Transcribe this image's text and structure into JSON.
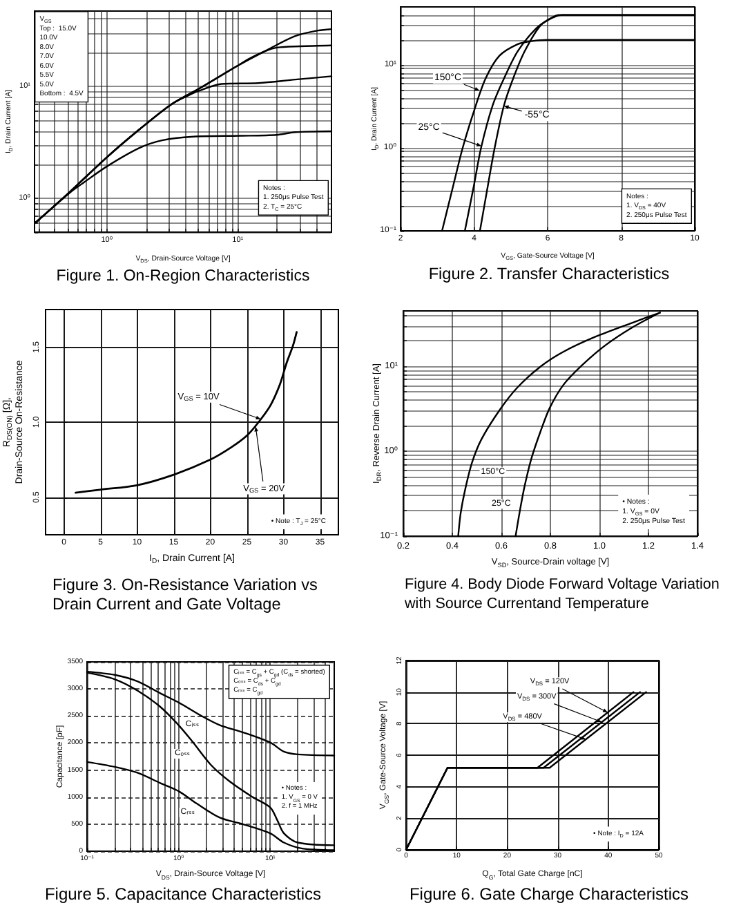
{
  "chart_data": [
    {
      "type": "line",
      "title": "Figure 1. On-Region Characteristics",
      "xlabel": "V$_{DS}$, Drain-Source Voltage [V]",
      "ylabel": "I$_{D}$, Drain Current [A]",
      "log": "xy",
      "xlim": [
        0.28,
        52
      ],
      "ylim": [
        0.5,
        47
      ],
      "xticks": [
        {
          "value": 0.3,
          "label": null
        },
        {
          "value": 0.4,
          "label": null
        },
        {
          "value": 0.5,
          "label": null
        },
        {
          "value": 0.6,
          "label": null
        },
        {
          "value": 0.7,
          "label": null
        },
        {
          "value": 0.8,
          "label": null
        },
        {
          "value": 0.9,
          "label": null
        },
        {
          "value": 1,
          "label": "10⁰"
        },
        {
          "value": 2,
          "label": null
        },
        {
          "value": 3,
          "label": null
        },
        {
          "value": 4,
          "label": null
        },
        {
          "value": 5,
          "label": null
        },
        {
          "value": 6,
          "label": null
        },
        {
          "value": 7,
          "label": null
        },
        {
          "value": 8,
          "label": null
        },
        {
          "value": 9,
          "label": null
        },
        {
          "value": 10,
          "label": "10¹"
        },
        {
          "value": 20,
          "label": null
        },
        {
          "value": 30,
          "label": null
        },
        {
          "value": 40,
          "label": null
        }
      ],
      "yticks": [
        {
          "value": 0.5,
          "label": null
        },
        {
          "value": 0.6,
          "label": null
        },
        {
          "value": 0.7,
          "label": null
        },
        {
          "value": 0.8,
          "label": null
        },
        {
          "value": 0.9,
          "label": null
        },
        {
          "value": 1,
          "label": "10⁰"
        },
        {
          "value": 2,
          "label": null
        },
        {
          "value": 3,
          "label": null
        },
        {
          "value": 4,
          "label": null
        },
        {
          "value": 5,
          "label": null
        },
        {
          "value": 6,
          "label": null
        },
        {
          "value": 7,
          "label": null
        },
        {
          "value": 8,
          "label": null
        },
        {
          "value": 9,
          "label": null
        },
        {
          "value": 10,
          "label": "10¹"
        },
        {
          "value": 20,
          "label": null
        },
        {
          "value": 30,
          "label": null
        },
        {
          "value": 40,
          "label": null
        }
      ],
      "grid": true,
      "marker": "none",
      "series": [
        {
          "color": "#000000",
          "x": [
            0.286,
            0.524,
            1.0,
            1.76,
            3.1,
            5.03,
            10,
            16.9,
            27.5,
            41.1,
            52
          ],
          "values": [
            0.61,
            1.15,
            2.33,
            4.1,
            6.9,
            9.5,
            15.3,
            21.2,
            28.1,
            31.5,
            32.4
          ]
        },
        {
          "color": "#000000",
          "x": [
            0.286,
            0.524,
            1.0,
            1.76,
            3.1,
            5.03,
            10,
            12.2,
            16,
            19.9,
            30,
            52
          ],
          "values": [
            0.61,
            1.15,
            2.33,
            4.1,
            6.9,
            9.5,
            15.3,
            17.6,
            20.5,
            22.2,
            22.8,
            23.2
          ]
        },
        {
          "color": "#000000",
          "x": [
            0.286,
            0.524,
            1.0,
            1.76,
            3.1,
            4.2,
            5.03,
            7.5,
            14.4,
            27.5,
            52
          ],
          "values": [
            0.61,
            1.15,
            2.33,
            4.1,
            6.9,
            8.3,
            9.1,
            10.5,
            10.7,
            11.5,
            12.3
          ]
        },
        {
          "color": "#000000",
          "x": [
            0.286,
            0.524,
            0.668,
            1.0,
            1.76,
            2.64,
            4.6,
            10.4,
            19.8,
            27.5,
            52
          ],
          "values": [
            0.61,
            1.13,
            1.39,
            1.93,
            2.81,
            3.3,
            3.56,
            3.62,
            3.69,
            3.9,
            3.98
          ]
        }
      ],
      "annotations": [
        "V$_{GS}$\nTop :  15.0V\n10.0V\n8.0V\n7.0V\n6.0V\n5.5V\n5.0V\nBottom :  4.5V",
        "Notes :\n1. 250μs Pulse Test\n2. T$_{C}$ = 25°C"
      ]
    },
    {
      "type": "line",
      "title": "Figure 2. Transfer Characteristics",
      "xlabel": "V$_{GS}$, Gate-Source Voltage [V]",
      "ylabel": "I$_{D}$, Drain Current [A]",
      "log": "y",
      "xlim": [
        2,
        10
      ],
      "ylim": [
        0.1,
        50
      ],
      "xticks": [
        2,
        4,
        6,
        8,
        10
      ],
      "yticks": [
        {
          "value": 0.1,
          "label": "10⁻¹"
        },
        {
          "value": 0.2,
          "label": null
        },
        {
          "value": 0.3,
          "label": null
        },
        {
          "value": 0.4,
          "label": null
        },
        {
          "value": 0.5,
          "label": null
        },
        {
          "value": 0.6,
          "label": null
        },
        {
          "value": 0.7,
          "label": null
        },
        {
          "value": 0.8,
          "label": null
        },
        {
          "value": 0.9,
          "label": null
        },
        {
          "value": 1,
          "label": "10⁰"
        },
        {
          "value": 2,
          "label": null
        },
        {
          "value": 3,
          "label": null
        },
        {
          "value": 4,
          "label": null
        },
        {
          "value": 5,
          "label": null
        },
        {
          "value": 6,
          "label": null
        },
        {
          "value": 7,
          "label": null
        },
        {
          "value": 8,
          "label": null
        },
        {
          "value": 9,
          "label": null
        },
        {
          "value": 10,
          "label": "10¹"
        },
        {
          "value": 20,
          "label": null
        },
        {
          "value": 30,
          "label": null
        },
        {
          "value": 40,
          "label": null
        }
      ],
      "grid": true,
      "marker": "none",
      "series": [
        {
          "color": "#000000",
          "x": [
            3.13,
            3.44,
            3.69,
            4.0,
            4.31,
            4.69,
            5.19,
            5.56,
            6.0,
            10
          ],
          "values": [
            0.1,
            0.36,
            1.0,
            2.8,
            6.8,
            12.9,
            17.8,
            19.3,
            20,
            20
          ]
        },
        {
          "color": "#000000",
          "x": [
            3.75,
            4.0,
            4.19,
            4.5,
            4.81,
            5.19,
            5.69,
            6.06,
            6.31,
            10
          ],
          "values": [
            0.1,
            0.36,
            1.0,
            3.2,
            6.8,
            14.7,
            27.5,
            36,
            40,
            40
          ]
        },
        {
          "color": "#000000",
          "x": [
            4.16,
            4.38,
            4.56,
            4.81,
            5.06,
            5.38,
            5.81,
            6.19,
            6.4,
            10
          ],
          "values": [
            0.1,
            0.36,
            1.0,
            3.2,
            6.8,
            14.7,
            30,
            38,
            40,
            40
          ]
        }
      ],
      "annotations": [
        {
          "text": "150°C",
          "x": 4.15,
          "y": 4.9
        },
        {
          "text": "25°C",
          "x": 4.2,
          "y": 1.05
        },
        {
          "text": "-55°C",
          "x": 4.81,
          "y": 3.2
        },
        "Notes :\n1. V$_{DS}$ = 40V\n2. 250μs Pulse Test"
      ]
    },
    {
      "type": "line",
      "title": "Figure 3. On-Resistance Variation vs Drain Current and Gate Voltage",
      "xlabel": "I$_{D}$, Drain Current [A]",
      "ylabel": "R$_{DS(ON)}$ [Ω],\nDrain-Source On-Resistance",
      "xlim": [
        -2.5,
        37.5
      ],
      "ylim": [
        0.25,
        1.75
      ],
      "xticks": [
        0,
        5,
        10,
        15,
        20,
        25,
        30,
        35
      ],
      "yticks": [
        0.5,
        {
          "value": 1,
          "label": "1.0"
        },
        1.5
      ],
      "grid": true,
      "marker": "none",
      "series": [
        {
          "color": "#000000",
          "x": [
            1.6,
            4.9,
            10,
            15,
            20,
            22.8,
            25,
            26.6,
            28.2,
            29.5,
            30.4,
            31.3,
            31.8
          ],
          "values": [
            0.53,
            0.55,
            0.58,
            0.65,
            0.75,
            0.83,
            0.91,
            1.0,
            1.11,
            1.25,
            1.39,
            1.51,
            1.6
          ]
        }
      ],
      "annotations": [
        {
          "text": "V$_{GS}$ = 10V",
          "x": 26.9,
          "y": 1.02
        },
        {
          "text": "V$_{GS}$ = 20V",
          "x": 26.2,
          "y": 0.97
        },
        "• Note : T$_{J}$ = 25°C"
      ]
    },
    {
      "type": "line",
      "title": "Figure 4. Body Diode Forward Voltage Variation with Source Currentand Temperature",
      "xlabel": "V$_{SD}$, Source-Drain voltage [V]",
      "ylabel": "I$_{DR}$, Reverse Drain Current [A]",
      "log": "y",
      "xlim": [
        0.2,
        1.4
      ],
      "ylim": [
        0.1,
        45
      ],
      "xticks": [
        0.2,
        0.4,
        0.6,
        0.8,
        {
          "value": 1,
          "label": "1.0"
        },
        1.2,
        1.4
      ],
      "yticks": [
        {
          "value": 0.1,
          "label": "10⁻¹"
        },
        {
          "value": 0.2,
          "label": null
        },
        {
          "value": 0.3,
          "label": null
        },
        {
          "value": 0.4,
          "label": null
        },
        {
          "value": 0.5,
          "label": null
        },
        {
          "value": 0.6,
          "label": null
        },
        {
          "value": 0.7,
          "label": null
        },
        {
          "value": 0.8,
          "label": null
        },
        {
          "value": 0.9,
          "label": null
        },
        {
          "value": 1,
          "label": "10⁰"
        },
        {
          "value": 2,
          "label": null
        },
        {
          "value": 3,
          "label": null
        },
        {
          "value": 4,
          "label": null
        },
        {
          "value": 5,
          "label": null
        },
        {
          "value": 6,
          "label": null
        },
        {
          "value": 7,
          "label": null
        },
        {
          "value": 8,
          "label": null
        },
        {
          "value": 9,
          "label": null
        },
        {
          "value": 10,
          "label": "10¹"
        },
        {
          "value": 20,
          "label": null
        },
        {
          "value": 30,
          "label": null
        },
        {
          "value": 40,
          "label": null
        }
      ],
      "grid": true,
      "marker": "none",
      "series": [
        {
          "color": "#000000",
          "x": [
            0.424,
            0.434,
            0.452,
            0.48,
            0.518,
            0.593,
            0.667,
            0.761,
            0.854,
            0.985,
            1.135,
            1.247
          ],
          "values": [
            0.1,
            0.186,
            0.35,
            0.73,
            1.37,
            3.06,
            5.7,
            10,
            14.9,
            22.4,
            32.7,
            42.9
          ]
        },
        {
          "color": "#000000",
          "x": [
            0.658,
            0.677,
            0.695,
            0.723,
            0.761,
            0.798,
            0.854,
            0.929,
            1.022,
            1.135,
            1.247
          ],
          "values": [
            0.1,
            0.21,
            0.39,
            0.83,
            1.75,
            3.27,
            6.1,
            10.3,
            17.5,
            28.8,
            42.9
          ]
        }
      ],
      "annotations": [
        {
          "text": "150°C",
          "x": 0.47,
          "y": 0.57
        },
        {
          "text": "25°C",
          "x": 0.673,
          "y": 0.24
        },
        "• Notes :\n1. V$_{GS}$ = 0V\n2. 250μs Pulse Test"
      ]
    },
    {
      "type": "line",
      "title": "Figure 5. Capacitance Characteristics",
      "xlabel": "V$_{DS}$, Drain-Source Voltage [V]",
      "ylabel": "Capacitance [pF]",
      "log": "x",
      "xlim": [
        0.1,
        50
      ],
      "ylim": [
        0,
        3500
      ],
      "xticks": [
        {
          "value": 0.1,
          "label": "10⁻¹"
        },
        {
          "value": 0.2,
          "label": null
        },
        {
          "value": 0.3,
          "label": null
        },
        {
          "value": 0.4,
          "label": null
        },
        {
          "value": 0.5,
          "label": null
        },
        {
          "value": 0.6,
          "label": null
        },
        {
          "value": 0.7,
          "label": null
        },
        {
          "value": 0.8,
          "label": null
        },
        {
          "value": 0.9,
          "label": null
        },
        {
          "value": 1,
          "label": "10⁰"
        },
        {
          "value": 2,
          "label": null
        },
        {
          "value": 3,
          "label": null
        },
        {
          "value": 4,
          "label": null
        },
        {
          "value": 5,
          "label": null
        },
        {
          "value": 6,
          "label": null
        },
        {
          "value": 7,
          "label": null
        },
        {
          "value": 8,
          "label": null
        },
        {
          "value": 9,
          "label": null
        },
        {
          "value": 10,
          "label": "10¹"
        },
        {
          "value": 20,
          "label": null
        },
        {
          "value": 30,
          "label": null
        },
        {
          "value": 40,
          "label": null
        }
      ],
      "yticks": [
        0,
        500,
        1000,
        1500,
        2000,
        2500,
        3000,
        3500
      ],
      "grid": true,
      "marker": "none",
      "series": [
        {
          "color": "#000000",
          "x": [
            0.1,
            0.2,
            0.355,
            0.63,
            1,
            1.78,
            2.82,
            5,
            10,
            14.1,
            20,
            50
          ],
          "values": [
            3320,
            3260,
            3140,
            2920,
            2750,
            2500,
            2330,
            2200,
            2010,
            1840,
            1790,
            1770
          ]
        },
        {
          "color": "#000000",
          "x": [
            0.1,
            0.2,
            0.355,
            0.63,
            1,
            1.41,
            2.24,
            3.55,
            6.3,
            10,
            11.9,
            14.1,
            20,
            50
          ],
          "values": [
            3300,
            3180,
            2970,
            2670,
            2330,
            2030,
            1600,
            1300,
            1010,
            810,
            580,
            330,
            160,
            110
          ]
        },
        {
          "color": "#000000",
          "x": [
            0.1,
            0.2,
            0.355,
            0.63,
            1,
            1.58,
            2.82,
            5,
            10,
            14.1,
            22.4,
            50
          ],
          "values": [
            1650,
            1560,
            1450,
            1260,
            1110,
            880,
            620,
            500,
            330,
            160,
            50,
            20
          ]
        }
      ],
      "annotations": [
        "Cᵢₛₛ = C$_{gs}$ + C$_{gd}$ (C$_{ds}$ = shorted)\nCₒₛₛ = C$_{ds}$ + C$_{gd}$\nCᵣₛₛ = C$_{gd}$",
        {
          "text": "Cᵢₛₛ",
          "x": 1.8,
          "y": 2490
        },
        {
          "text": "Cₒₛₛ",
          "x": 1.5,
          "y": 1980
        },
        {
          "text": "Cᵣₛₛ",
          "x": 1.6,
          "y": 870
        },
        "• Notes :\n1. V$_{GS}$ = 0 V\n2. f = 1 MHz"
      ]
    },
    {
      "type": "line",
      "title": "Figure 6. Gate Charge Characteristics",
      "xlabel": "Q$_{G}$, Total Gate Charge [nC]",
      "ylabel": "V$_{GS}$, Gate-Source Voltage [V]",
      "xlim": [
        0,
        50
      ],
      "ylim": [
        0,
        12
      ],
      "xticks": [
        0,
        10,
        20,
        30,
        40,
        50
      ],
      "yticks": [
        0,
        2,
        4,
        6,
        8,
        10,
        12
      ],
      "grid": true,
      "marker": "none",
      "series": [
        {
          "color": "#000000",
          "x": [
            0,
            8.2,
            26,
            45
          ],
          "values": [
            0,
            5.2,
            5.2,
            10
          ]
        },
        {
          "color": "#000000",
          "x": [
            0,
            8.2,
            27.2,
            46.3
          ],
          "values": [
            0,
            5.2,
            5.2,
            10
          ]
        },
        {
          "color": "#000000",
          "x": [
            0,
            8.2,
            28.4,
            47.5
          ],
          "values": [
            0,
            5.2,
            5.2,
            10
          ]
        }
      ],
      "annotations": [
        {
          "text": "V$_{DS}$ = 120V",
          "x": 39.9,
          "y": 8.7
        },
        {
          "text": "V$_{DS}$ = 300V",
          "x": 38.7,
          "y": 8.1
        },
        {
          "text": "V$_{DS}$ = 480V",
          "x": 35.6,
          "y": 7.0
        },
        "• Note : I$_{D}$ = 12A"
      ]
    }
  ]
}
